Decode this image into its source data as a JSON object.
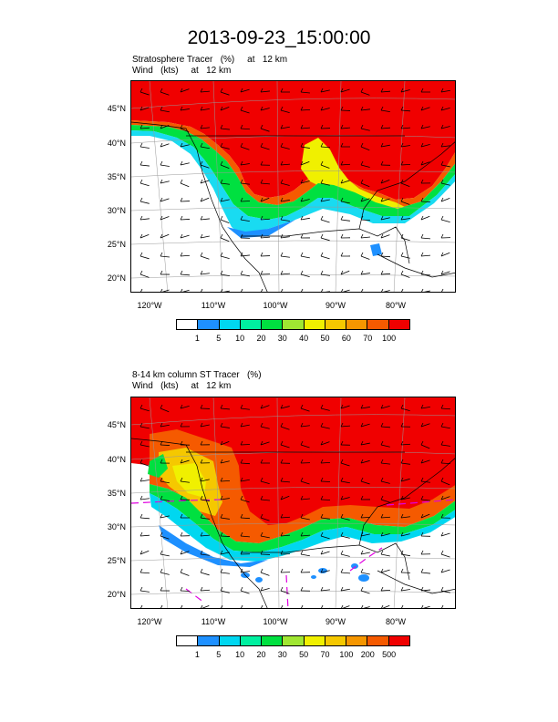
{
  "title": "2013-09-23_15:00:00",
  "panels": [
    {
      "line1": "Stratosphere Tracer   (%)     at   12 km",
      "line2": "Wind   (kts)     at   12 km",
      "lat_labels": [
        "45°N",
        "40°N",
        "35°N",
        "30°N",
        "25°N",
        "20°N"
      ],
      "lon_labels": [
        "120°W",
        "110°W",
        "100°W",
        "90°W",
        "80°W"
      ],
      "colorbar": {
        "colors": [
          "#ffffff",
          "#1e90ff",
          "#00d7f0",
          "#00f0a0",
          "#00e040",
          "#a0e632",
          "#f0f000",
          "#f5c800",
          "#f59600",
          "#f55a00",
          "#f00000"
        ],
        "labels": [
          "1",
          "5",
          "10",
          "20",
          "30",
          "40",
          "50",
          "60",
          "70",
          "100"
        ]
      }
    },
    {
      "line1": "8-14 km column ST Tracer   (%)",
      "line2": "Wind   (kts)     at   12 km",
      "lat_labels": [
        "45°N",
        "40°N",
        "35°N",
        "30°N",
        "25°N",
        "20°N"
      ],
      "lon_labels": [
        "120°W",
        "110°W",
        "100°W",
        "90°W",
        "80°W"
      ],
      "colorbar": {
        "colors": [
          "#ffffff",
          "#1e90ff",
          "#00d7f0",
          "#00f0a0",
          "#00e040",
          "#a0e632",
          "#f0f000",
          "#f5c800",
          "#f59600",
          "#f55a00",
          "#f00000"
        ],
        "labels": [
          "1",
          "5",
          "10",
          "20",
          "30",
          "50",
          "70",
          "100",
          "200",
          "500"
        ]
      }
    }
  ]
}
